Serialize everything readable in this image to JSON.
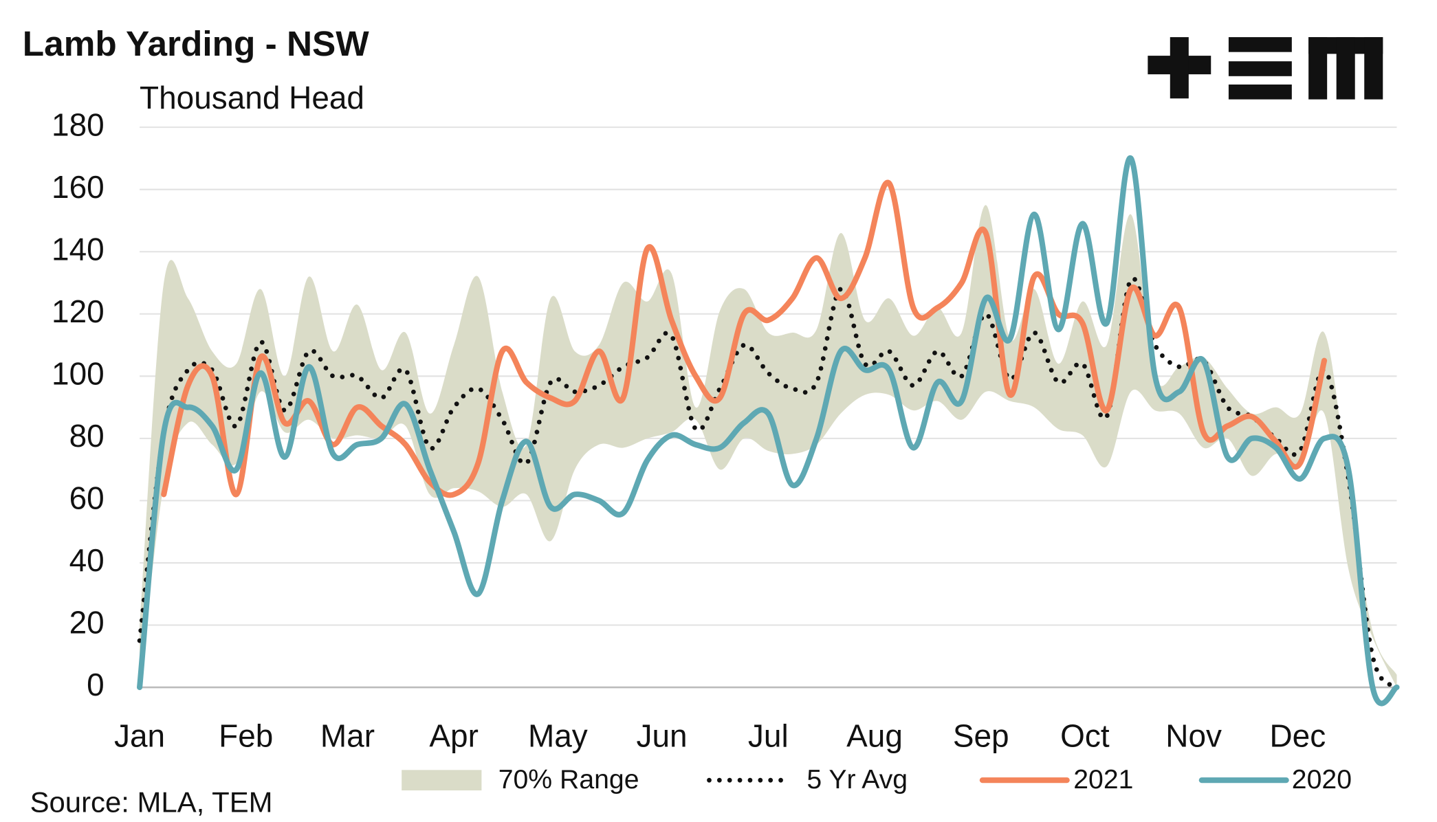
{
  "chart_data": {
    "type": "line",
    "title": "Lamb Yarding - NSW",
    "subtitle": "Thousand Head",
    "source": "Source: MLA, TEM",
    "xlim": [
      0,
      52
    ],
    "xticks": [
      {
        "value": 0,
        "label": "Jan"
      },
      {
        "value": 4.4,
        "label": "Feb"
      },
      {
        "value": 8.6,
        "label": "Mar"
      },
      {
        "value": 13,
        "label": "Apr"
      },
      {
        "value": 17.3,
        "label": "May"
      },
      {
        "value": 21.6,
        "label": "Jun"
      },
      {
        "value": 26,
        "label": "Jul"
      },
      {
        "value": 30.4,
        "label": "Aug"
      },
      {
        "value": 34.8,
        "label": "Sep"
      },
      {
        "value": 39.1,
        "label": "Oct"
      },
      {
        "value": 43.6,
        "label": "Nov"
      },
      {
        "value": 47.9,
        "label": "Dec"
      }
    ],
    "ylim": [
      0,
      180
    ],
    "yticks": [
      0,
      20,
      40,
      60,
      80,
      100,
      120,
      140,
      160,
      180
    ],
    "grid": true,
    "legend": "bottom",
    "series": [
      {
        "name": "70% Range",
        "kind": "range",
        "color": "#dadcc8",
        "low": [
          0,
          65,
          85,
          78,
          72,
          95,
          82,
          86,
          80,
          81,
          80,
          84,
          62,
          64,
          63,
          58,
          62,
          47,
          70,
          78,
          77,
          80,
          82,
          86,
          70,
          80,
          76,
          75,
          78,
          88,
          94,
          94,
          89,
          92,
          86,
          95,
          92,
          90,
          83,
          81,
          71,
          95,
          89,
          88,
          77,
          80,
          68,
          75,
          72,
          88,
          38,
          16,
          0
        ],
        "high": [
          20,
          130,
          125,
          108,
          104,
          128,
          100,
          132,
          108,
          123,
          102,
          114,
          88,
          110,
          132,
          95,
          78,
          125,
          108,
          110,
          130,
          124,
          133,
          90,
          121,
          128,
          114,
          114,
          115,
          146,
          118,
          125,
          113,
          122,
          114,
          155,
          112,
          128,
          104,
          124,
          110,
          152,
          100,
          103,
          106,
          96,
          88,
          90,
          88,
          114,
          65,
          18,
          4
        ]
      },
      {
        "name": "5 Yr Avg",
        "kind": "dotted",
        "color": "#111111",
        "values": [
          15,
          82,
          102,
          102,
          84,
          111,
          89,
          108,
          100,
          100,
          93,
          102,
          77,
          90,
          96,
          86,
          72,
          98,
          95,
          97,
          103,
          106,
          113,
          83,
          96,
          110,
          101,
          96,
          98,
          128,
          104,
          108,
          97,
          108,
          100,
          120,
          99,
          114,
          98,
          104,
          87,
          131,
          110,
          103,
          105,
          90,
          87,
          80,
          76,
          102,
          67,
          10,
          0
        ]
      },
      {
        "name": "2021",
        "kind": "line",
        "color": "#f4845a",
        "values": [
          null,
          62,
          97,
          100,
          62,
          106,
          85,
          92,
          78,
          90,
          84,
          78,
          66,
          62,
          72,
          108,
          98,
          93,
          92,
          108,
          93,
          141,
          118,
          100,
          93,
          120,
          118,
          125,
          138,
          125,
          138,
          162,
          122,
          122,
          130,
          146,
          94,
          132,
          120,
          117,
          89,
          128,
          113,
          122,
          82,
          84,
          87,
          79,
          72,
          105,
          null,
          null,
          null
        ]
      },
      {
        "name": "2020",
        "kind": "line",
        "color": "#5ea8b3",
        "values": [
          0,
          82,
          90,
          84,
          70,
          101,
          74,
          103,
          75,
          78,
          80,
          91,
          70,
          50,
          30,
          60,
          79,
          58,
          62,
          60,
          56,
          73,
          81,
          78,
          77,
          85,
          88,
          65,
          80,
          108,
          102,
          102,
          77,
          98,
          92,
          125,
          112,
          152,
          115,
          149,
          117,
          170,
          100,
          95,
          105,
          74,
          80,
          77,
          67,
          80,
          70,
          0,
          0
        ]
      }
    ]
  }
}
